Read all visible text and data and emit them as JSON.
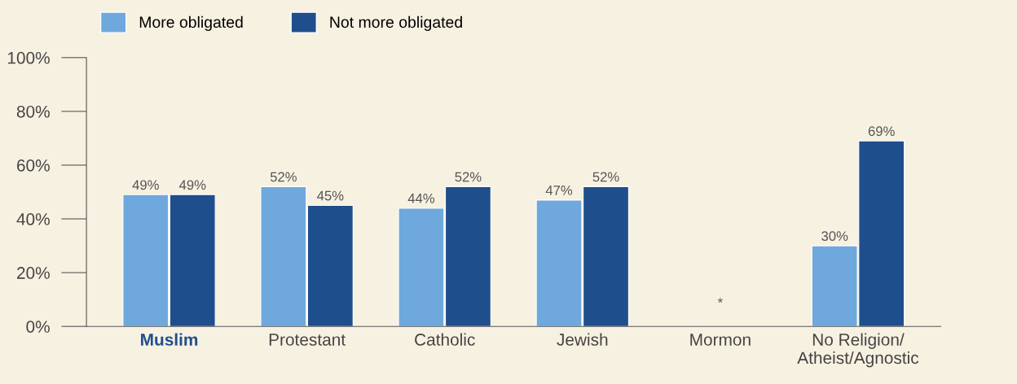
{
  "chart_data": {
    "type": "bar",
    "categories": [
      "Muslim",
      "Protestant",
      "Catholic",
      "Jewish",
      "Mormon",
      "No Religion/\nAtheist/Agnostic"
    ],
    "series": [
      {
        "name": "More obligated",
        "color": "#6fa8dc",
        "values": [
          49,
          52,
          44,
          47,
          null,
          30
        ]
      },
      {
        "name": "Not more obligated",
        "color": "#1f4e8c",
        "values": [
          49,
          45,
          52,
          52,
          null,
          69
        ]
      }
    ],
    "ylim": [
      0,
      100
    ],
    "yticks": [
      {
        "value": 0,
        "label": "0%"
      },
      {
        "value": 20,
        "label": "20%"
      },
      {
        "value": 40,
        "label": "40%"
      },
      {
        "value": 60,
        "label": "60%"
      },
      {
        "value": 80,
        "label": "80%"
      },
      {
        "value": 100,
        "label": "100%"
      }
    ],
    "value_labels": [
      [
        "49%",
        "52%",
        "44%",
        "47%",
        null,
        "30%"
      ],
      [
        "49%",
        "45%",
        "52%",
        "52%",
        null,
        "69%"
      ]
    ],
    "annotations": [
      "*"
    ],
    "grid": false,
    "legend": "top left"
  }
}
